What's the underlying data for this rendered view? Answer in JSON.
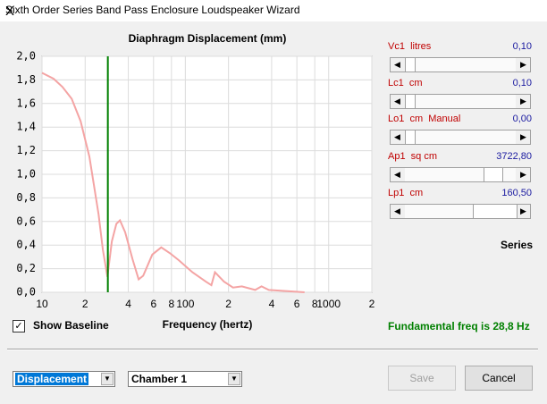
{
  "window": {
    "title": "Sixth Order Series Band Pass Enclosure Loudspeaker Wizard",
    "close": "X"
  },
  "chart_data": {
    "type": "line",
    "title": "Diaphragm Displacement (mm)",
    "xlabel": "Frequency (hertz)",
    "x": [
      10,
      12.06,
      13.9,
      16.1,
      18.6,
      21.4,
      24.8,
      26.6,
      28.6,
      30.7,
      33,
      35,
      38,
      42.8,
      47.2,
      50.8,
      58.8,
      67.9,
      78.3,
      90.3,
      112,
      139,
      152,
      161,
      186,
      215,
      248,
      307,
      340,
      382,
      678
    ],
    "series": [
      {
        "color": "#f4a4a4",
        "values": [
          1.86,
          1.81,
          1.74,
          1.64,
          1.45,
          1.15,
          0.66,
          0.36,
          0.13,
          0.43,
          0.58,
          0.61,
          0.51,
          0.28,
          0.11,
          0.14,
          0.32,
          0.38,
          0.33,
          0.27,
          0.17,
          0.09,
          0.06,
          0.17,
          0.09,
          0.04,
          0.05,
          0.02,
          0.05,
          0.02,
          0
        ]
      }
    ],
    "xlim": [
      10,
      2000
    ],
    "ylim": [
      0,
      2
    ],
    "log_x": true,
    "grid": true,
    "xticks": [
      10,
      {
        "value": 20,
        "label": "2"
      },
      {
        "value": 40,
        "label": "4"
      },
      {
        "value": 60,
        "label": "6"
      },
      {
        "value": 80,
        "label": "8"
      },
      100,
      {
        "value": 200,
        "label": "2"
      },
      {
        "value": 400,
        "label": "4"
      },
      {
        "value": 600,
        "label": "6"
      },
      {
        "value": 800,
        "label": "8"
      },
      1000,
      {
        "value": 2000,
        "label": "2"
      }
    ],
    "yticks": [
      {
        "value": 0,
        "label": "0,0"
      },
      {
        "value": 0.2,
        "label": "0,2"
      },
      {
        "value": 0.4,
        "label": "0,4"
      },
      {
        "value": 0.6,
        "label": "0,6"
      },
      {
        "value": 0.8,
        "label": "0,8"
      },
      {
        "value": 1,
        "label": "1,0"
      },
      {
        "value": 1.2,
        "label": "1,2"
      },
      {
        "value": 1.4,
        "label": "1,4"
      },
      {
        "value": 1.6,
        "label": "1,6"
      },
      {
        "value": 1.8,
        "label": "1,8"
      },
      {
        "value": 2,
        "label": "2,0"
      }
    ],
    "fundamental_freq": 28.8,
    "fundamental_color": "#008000"
  },
  "panel": {
    "sliders": [
      {
        "label": "Vc1  litres",
        "value": "0,10"
      },
      {
        "label": "Lc1  cm",
        "value": "0,10"
      },
      {
        "label": "Lo1  cm  Manual",
        "value": "0,00"
      },
      {
        "label": "Ap1  sq cm",
        "value": "3722,80"
      },
      {
        "label": "Lp1  cm",
        "value": "160,50"
      }
    ],
    "mode": "Series",
    "fundamental_text": "Fundamental freq is 28,8 Hz"
  },
  "controls": {
    "checkbox": "Show Baseline",
    "dropdown1": "Displacement",
    "dropdown2": "Chamber 1",
    "save": "Save",
    "cancel": "Cancel"
  }
}
